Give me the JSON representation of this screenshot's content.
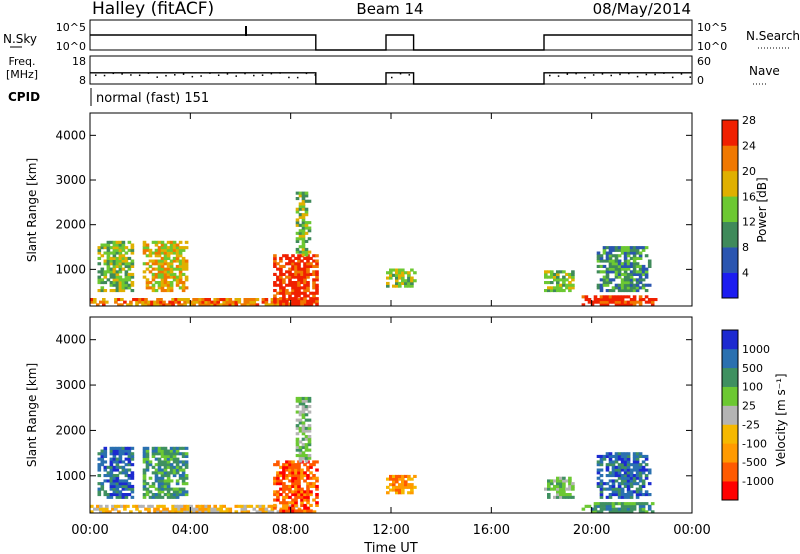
{
  "header": {
    "station": "Halley (fitACF)",
    "beam": "Beam 14",
    "date": "08/May/2014"
  },
  "nsky_panel": {
    "left_label": "N.Sky",
    "left_ticks": [
      "10^5",
      "10^0"
    ],
    "right_label": "N.Search",
    "right_ticks": [
      "10^5",
      "10^0"
    ]
  },
  "freq_panel": {
    "left_label_1": "Freq.",
    "left_label_2": "[MHz]",
    "left_ticks": [
      "18",
      "8"
    ],
    "right_label": "Nave",
    "right_ticks": [
      "60",
      "0"
    ]
  },
  "cpid": {
    "label": "CPID",
    "value": "normal (fast) 151"
  },
  "x_axis": {
    "label": "Time UT",
    "ticks": [
      "00:00",
      "04:00",
      "08:00",
      "12:00",
      "16:00",
      "20:00",
      "00:00"
    ]
  },
  "colors": {
    "power": [
      "#1c1cf0",
      "#2a55b0",
      "#3f8a5a",
      "#6cc832",
      "#e0b000",
      "#f07800",
      "#f02000"
    ],
    "velocity": [
      "#ff0000",
      "#ff5a00",
      "#ff9a00",
      "#f5b800",
      "#b4b4b4",
      "#6cc832",
      "#3f9060",
      "#2a70b0",
      "#1c2ad0"
    ]
  },
  "chart_data": [
    {
      "type": "line",
      "name": "nsky-nsearch",
      "x": [
        0,
        9.0,
        9.0,
        11.8,
        11.8,
        12.9,
        12.9,
        18.1,
        18.1,
        24
      ],
      "values": [
        1000,
        1000,
        0,
        0,
        1000,
        1000,
        0,
        0,
        1000,
        1000
      ],
      "xlim": [
        0,
        24
      ]
    },
    {
      "type": "line",
      "name": "frequency",
      "x": [
        0,
        9.0,
        9.0,
        11.8,
        11.8,
        12.9,
        12.9,
        18.1,
        18.1,
        24
      ],
      "values": [
        12,
        12,
        8,
        8,
        12,
        12,
        8,
        8,
        12,
        12
      ],
      "ylim": [
        8,
        18
      ],
      "xlim": [
        0,
        24
      ]
    },
    {
      "type": "heatmap",
      "name": "power",
      "ylabel": "Slant Range [km]",
      "yticks": [
        "1000",
        "2000",
        "3000",
        "4000"
      ],
      "xlim": [
        0,
        24
      ],
      "ylim": [
        180,
        4500
      ],
      "colorbar_label": "Power [dB]",
      "colorbar_ticks": [
        "4",
        "8",
        "12",
        "16",
        "20",
        "24",
        "28"
      ],
      "regions": [
        {
          "t0": 0.0,
          "t1": 8.9,
          "r0": 180,
          "r1": 320,
          "level": 5
        },
        {
          "t0": 0.3,
          "t1": 1.7,
          "r0": 500,
          "r1": 1600,
          "level": 3
        },
        {
          "t0": 2.1,
          "t1": 3.8,
          "r0": 500,
          "r1": 1600,
          "level": 4
        },
        {
          "t0": 7.3,
          "t1": 9.0,
          "r0": 200,
          "r1": 1300,
          "level": 6
        },
        {
          "t0": 8.2,
          "t1": 8.7,
          "r0": 1300,
          "r1": 2700,
          "level": 3
        },
        {
          "t0": 11.8,
          "t1": 12.9,
          "r0": 600,
          "r1": 1000,
          "level": 3
        },
        {
          "t0": 18.1,
          "t1": 19.2,
          "r0": 500,
          "r1": 950,
          "level": 3
        },
        {
          "t0": 19.6,
          "t1": 22.6,
          "r0": 180,
          "r1": 400,
          "level": 6
        },
        {
          "t0": 20.2,
          "t1": 22.3,
          "r0": 500,
          "r1": 1500,
          "level": 2
        }
      ]
    },
    {
      "type": "heatmap",
      "name": "velocity",
      "ylabel": "Slant Range [km]",
      "yticks": [
        "1000",
        "2000",
        "3000",
        "4000"
      ],
      "xlim": [
        0,
        24
      ],
      "ylim": [
        180,
        4500
      ],
      "colorbar_label": "Velocity [m s⁻¹]",
      "colorbar_ticks": [
        "1000",
        "500",
        "100",
        "25",
        "-25",
        "-100",
        "-500",
        "-1000"
      ],
      "regions": [
        {
          "t0": 0.0,
          "t1": 8.9,
          "r0": 180,
          "r1": 320,
          "level": 3
        },
        {
          "t0": 0.3,
          "t1": 1.7,
          "r0": 500,
          "r1": 1600,
          "level": 7
        },
        {
          "t0": 2.1,
          "t1": 3.8,
          "r0": 500,
          "r1": 1600,
          "level": 6
        },
        {
          "t0": 7.3,
          "t1": 9.0,
          "r0": 200,
          "r1": 1300,
          "level": 1
        },
        {
          "t0": 8.2,
          "t1": 8.7,
          "r0": 1300,
          "r1": 2700,
          "level": 5
        },
        {
          "t0": 11.8,
          "t1": 12.9,
          "r0": 600,
          "r1": 1000,
          "level": 2
        },
        {
          "t0": 18.1,
          "t1": 19.2,
          "r0": 500,
          "r1": 950,
          "level": 5
        },
        {
          "t0": 19.6,
          "t1": 22.6,
          "r0": 180,
          "r1": 400,
          "level": 6
        },
        {
          "t0": 20.2,
          "t1": 22.3,
          "r0": 500,
          "r1": 1500,
          "level": 7
        }
      ]
    }
  ]
}
